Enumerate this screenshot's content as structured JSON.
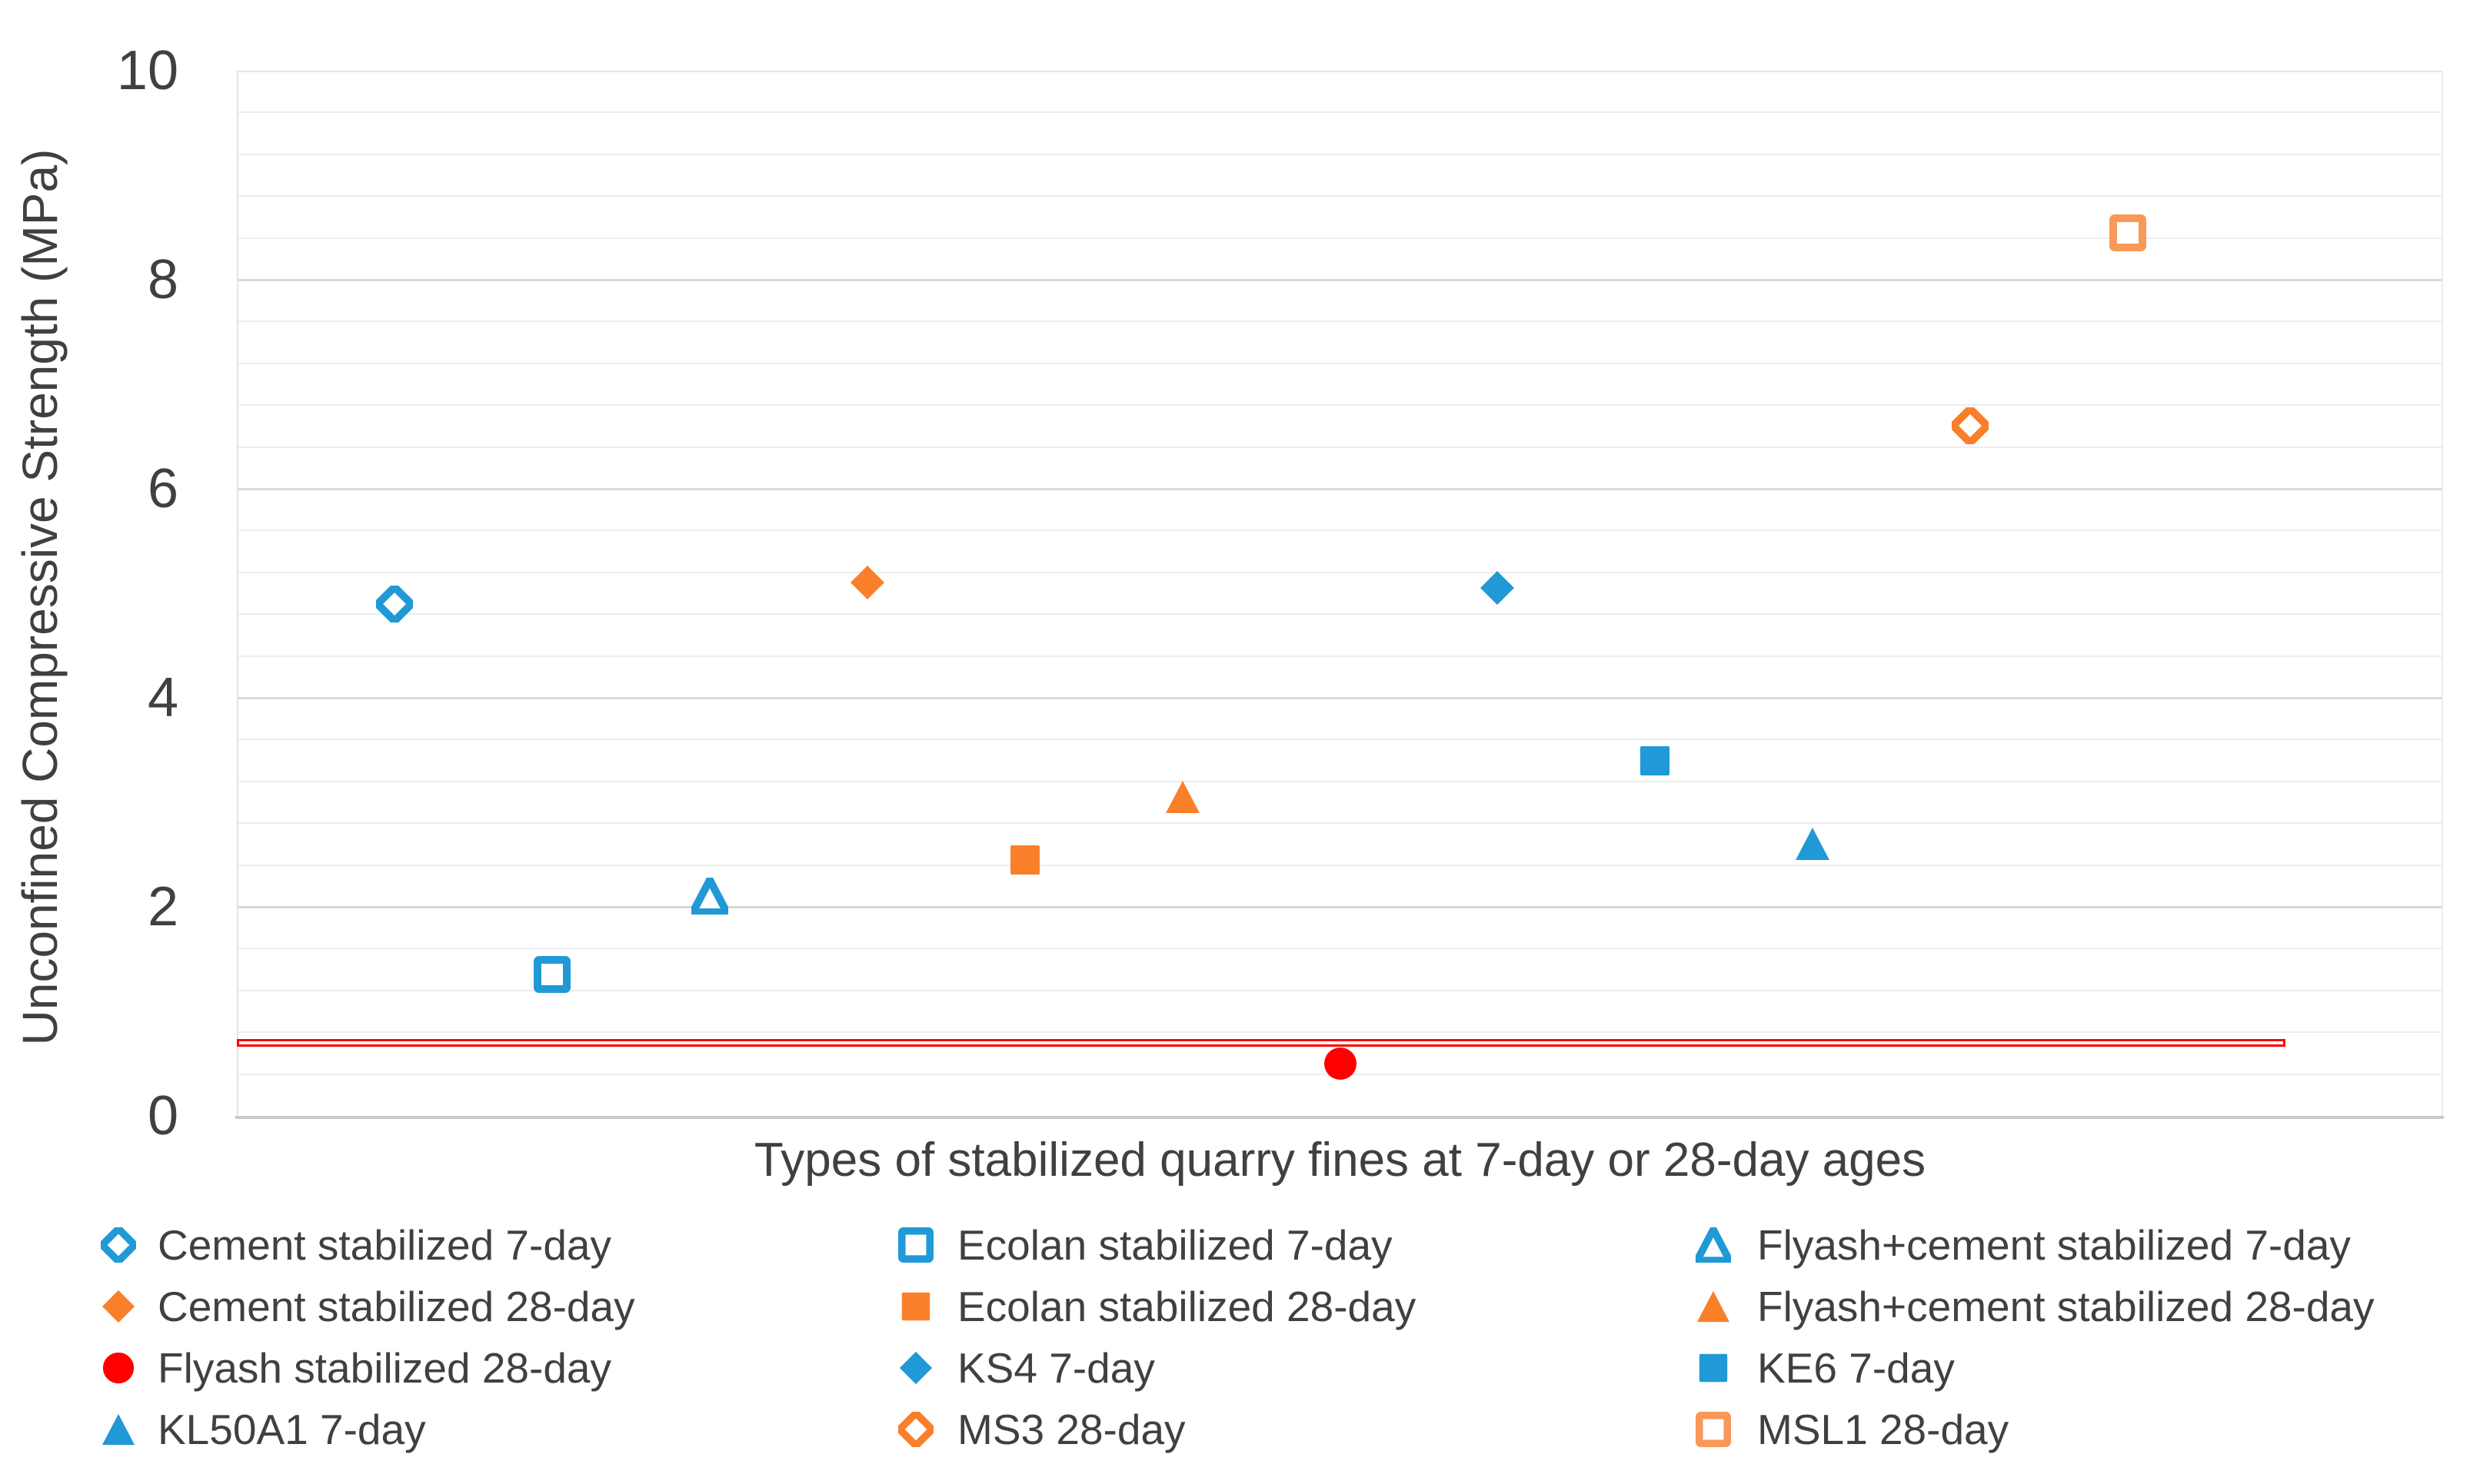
{
  "chart_data": {
    "type": "scatter",
    "title": "",
    "x_axis": {
      "label": "Types of stabilized quarry fines at 7-day or 28-day ages",
      "range": [
        0,
        14
      ],
      "tick_labels": []
    },
    "y_axis": {
      "label": "Unconfined Compressive Strength (MPa)",
      "range": [
        0,
        10
      ],
      "major_unit": 2,
      "minor_unit": 0.4,
      "ticks": [
        "0",
        "2",
        "4",
        "6",
        "8",
        "10"
      ],
      "tick_values": [
        0,
        2,
        4,
        6,
        8,
        10
      ]
    },
    "grid": {
      "minor_on": true,
      "major_on": true
    },
    "series": [
      {
        "name": "Cement stabilized 7-day",
        "marker": "diamond",
        "style": "open",
        "color": "#2199D6",
        "x": 1,
        "y": 4.9
      },
      {
        "name": "Ecolan stabilized 7-day",
        "marker": "square",
        "style": "open",
        "color": "#2199D6",
        "x": 2,
        "y": 1.35
      },
      {
        "name": "Flyash+cement stabilized 7-day",
        "marker": "triangle",
        "style": "open",
        "color": "#2199D6",
        "x": 3,
        "y": 2.1
      },
      {
        "name": "Cement stabilized 28-day",
        "marker": "diamond",
        "style": "solid",
        "color": "#FA7F2A",
        "x": 4,
        "y": 5.1
      },
      {
        "name": "Ecolan stabilized 28-day",
        "marker": "square",
        "style": "solid",
        "color": "#FA7F2A",
        "x": 5,
        "y": 2.45
      },
      {
        "name": "Flyash+cement stabilized 28-day",
        "marker": "triangle",
        "style": "solid",
        "color": "#FA7F2A",
        "x": 6,
        "y": 3.05
      },
      {
        "name": "Flyash stabilized 28-day",
        "marker": "circle",
        "style": "solid",
        "color": "#FF0000",
        "x": 7,
        "y": 0.5
      },
      {
        "name": "KS4 7-day",
        "marker": "diamond",
        "style": "solid",
        "color": "#2199D6",
        "x": 8,
        "y": 5.05
      },
      {
        "name": "KE6 7-day",
        "marker": "square",
        "style": "solid",
        "color": "#2199D6",
        "x": 9,
        "y": 3.4
      },
      {
        "name": "KL50A1 7-day",
        "marker": "triangle",
        "style": "solid",
        "color": "#2199D6",
        "x": 10,
        "y": 2.6
      },
      {
        "name": "MS3 28-day",
        "marker": "diamond",
        "style": "open",
        "color": "#FA7F2A",
        "x": 11,
        "y": 6.6
      },
      {
        "name": "MSL1 28-day",
        "marker": "square",
        "style": "open",
        "color": "#F99858",
        "x": 12,
        "y": 8.45
      }
    ],
    "reference_line": {
      "y": 0.7,
      "x_start": 0,
      "x_end": 13,
      "color": "#FF0000",
      "style": "double"
    },
    "legend": {
      "position": "bottom",
      "columns": [
        [
          0,
          3,
          6,
          9
        ],
        [
          1,
          4,
          7,
          10
        ],
        [
          2,
          5,
          8,
          11
        ]
      ]
    },
    "colors": {
      "blue": "#2199D6",
      "orange": "#FA7F2A",
      "light_orange": "#F99858",
      "red": "#FF0000",
      "text": "#404040",
      "minor_grid": "#EDEDED",
      "major_grid": "#D9D9D9",
      "axis_line": "#C9C9C9"
    }
  }
}
